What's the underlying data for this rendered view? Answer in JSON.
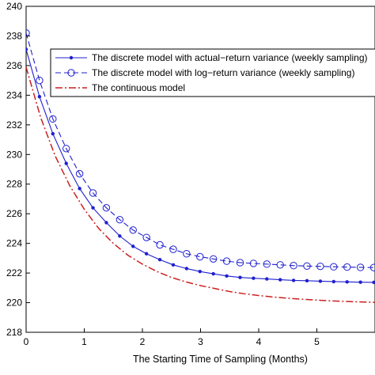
{
  "chart_data": {
    "type": "line",
    "title": "",
    "xlabel": "The Starting Time of Sampling (Months)",
    "ylabel": "",
    "xlim": [
      0,
      6
    ],
    "ylim": [
      218,
      240
    ],
    "xticks": [
      0,
      1,
      2,
      3,
      4,
      5
    ],
    "yticks": [
      218,
      220,
      222,
      224,
      226,
      228,
      230,
      232,
      234,
      236,
      238,
      240
    ],
    "grid": false,
    "legend_position": "top-right",
    "series": [
      {
        "name": "The discrete model with actual−return variance (weekly sampling)",
        "color": "#1f1fd0",
        "line_style": "solid",
        "marker": "dot",
        "x": [
          0,
          0.23,
          0.46,
          0.69,
          0.92,
          1.15,
          1.38,
          1.61,
          1.84,
          2.07,
          2.3,
          2.53,
          2.76,
          2.99,
          3.22,
          3.45,
          3.68,
          3.91,
          4.14,
          4.37,
          4.6,
          4.83,
          5.06,
          5.29,
          5.52,
          5.75,
          5.98
        ],
        "y": [
          237.1,
          233.9,
          231.4,
          229.4,
          227.7,
          226.4,
          225.4,
          224.5,
          223.8,
          223.3,
          222.9,
          222.55,
          222.3,
          222.1,
          221.95,
          221.8,
          221.7,
          221.65,
          221.6,
          221.55,
          221.5,
          221.48,
          221.45,
          221.42,
          221.4,
          221.38,
          221.37
        ]
      },
      {
        "name": "The discrete model with log−return variance (weekly sampling)",
        "color": "#1f1fd0",
        "line_style": "dashed",
        "marker": "circle",
        "x": [
          0,
          0.23,
          0.46,
          0.69,
          0.92,
          1.15,
          1.38,
          1.61,
          1.84,
          2.07,
          2.3,
          2.53,
          2.76,
          2.99,
          3.22,
          3.45,
          3.68,
          3.91,
          4.14,
          4.37,
          4.6,
          4.83,
          5.06,
          5.29,
          5.52,
          5.75,
          5.98
        ],
        "y": [
          238.2,
          235.0,
          232.4,
          230.4,
          228.7,
          227.4,
          226.4,
          225.6,
          224.9,
          224.4,
          223.9,
          223.6,
          223.3,
          223.1,
          222.95,
          222.8,
          222.7,
          222.65,
          222.6,
          222.55,
          222.5,
          222.47,
          222.45,
          222.42,
          222.4,
          222.38,
          222.37
        ]
      },
      {
        "name": "The continuous model",
        "color": "#cc1f1f",
        "line_style": "dashdot",
        "marker": "none",
        "x": [
          0,
          0.25,
          0.5,
          0.75,
          1.0,
          1.25,
          1.5,
          1.75,
          2.0,
          2.25,
          2.5,
          2.75,
          3.0,
          3.25,
          3.5,
          3.75,
          4.0,
          4.25,
          4.5,
          4.75,
          5.0,
          5.25,
          5.5,
          5.75,
          6.0
        ],
        "y": [
          235.9,
          232.5,
          229.9,
          227.9,
          226.3,
          225.0,
          224.0,
          223.2,
          222.6,
          222.1,
          221.7,
          221.4,
          221.15,
          220.95,
          220.75,
          220.6,
          220.48,
          220.38,
          220.3,
          220.23,
          220.17,
          220.12,
          220.08,
          220.05,
          220.02
        ]
      }
    ]
  }
}
